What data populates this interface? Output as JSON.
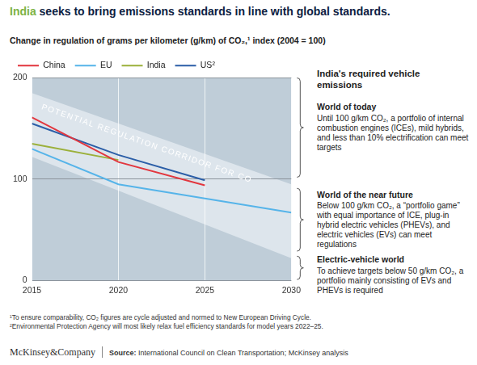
{
  "chart_data": {
    "type": "line",
    "title": "India seeks to bring emissions standards in line with global standards.",
    "subtitle": "Change in regulation of grams per kilometer (g/km) of CO₂,¹ index (2004 = 100)",
    "x": [
      2015,
      2020,
      2025,
      2030
    ],
    "series": [
      {
        "name": "China",
        "color": "#e2363e",
        "values": [
          161,
          117,
          94,
          null
        ]
      },
      {
        "name": "EU",
        "color": "#56b4e9",
        "values": [
          130,
          95,
          81,
          67
        ]
      },
      {
        "name": "India",
        "color": "#9bb03a",
        "values": [
          135,
          119,
          null,
          null
        ]
      },
      {
        "name": "US²",
        "color": "#2b5ea7",
        "values": [
          155,
          124,
          99,
          null
        ]
      }
    ],
    "xlim": [
      2015,
      2030
    ],
    "xticks": [
      2015,
      2020,
      2025,
      2030
    ],
    "ylim": [
      0,
      200
    ],
    "yticks": [
      0,
      100,
      200
    ],
    "grid": true,
    "legend": "top",
    "corridor": {
      "label": "POTENTIAL REGULATION CORRIDOR FOR CO",
      "x": [
        2015,
        2030
      ],
      "upper": [
        185,
        95
      ],
      "lower": [
        122,
        22
      ]
    },
    "annotations": {
      "title": "India's required vehicle emissions",
      "sections": [
        {
          "heading": "World of today",
          "text": "Until 100 g/km CO₂, a portfolio of internal combustion engines (ICEs), mild hybrids, and less than 10% electrification can meet targets"
        },
        {
          "heading": "World of the near future",
          "text": "Below 100 g/km CO₂, a “portfolio game” with equal importance of ICE, plug-in hybrid electric vehicles (PHEVs), and electric vehicles (EVs) can meet regulations"
        },
        {
          "heading": "Electric-vehicle world",
          "text": "To achieve targets below 50 g/km CO₂, a portfolio mainly consisting of EVs and PHEVs is required"
        }
      ]
    },
    "notes": [
      "¹To ensure comparability, CO₂ figures are cycle adjusted and normed to New European Driving Cycle.",
      "²Environmental Protection Agency will most likely relax fuel efficiency standards for model years 2022–25."
    ],
    "brand": "McKinsey&Company",
    "source": "Source: International Council on Clean Transportation; McKinsey analysis"
  }
}
